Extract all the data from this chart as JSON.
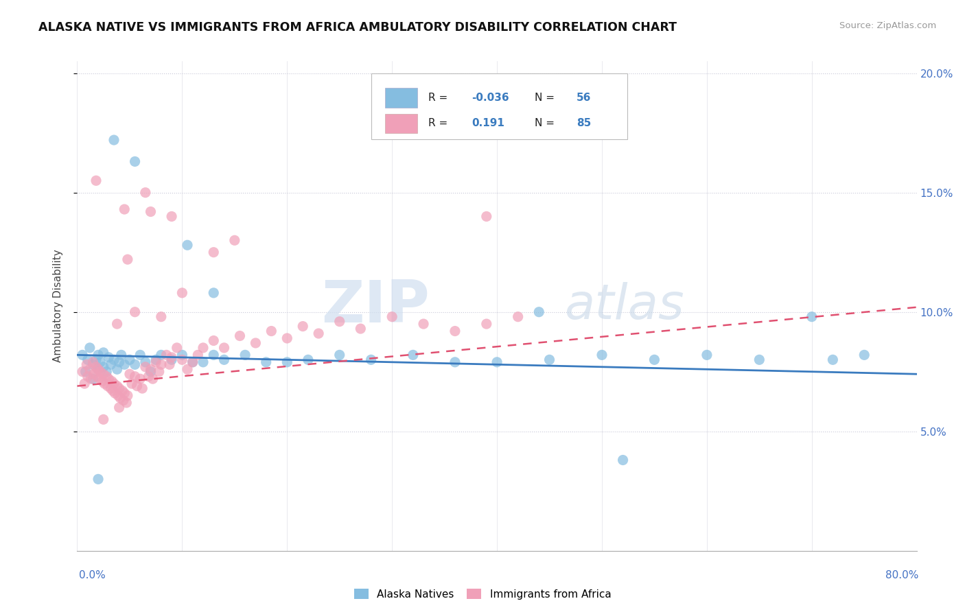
{
  "title": "ALASKA NATIVE VS IMMIGRANTS FROM AFRICA AMBULATORY DISABILITY CORRELATION CHART",
  "source": "Source: ZipAtlas.com",
  "ylabel": "Ambulatory Disability",
  "xmin": 0.0,
  "xmax": 0.8,
  "ymin": 0.0,
  "ymax": 0.205,
  "yticks": [
    0.05,
    0.1,
    0.15,
    0.2
  ],
  "ytick_labels": [
    "5.0%",
    "10.0%",
    "15.0%",
    "20.0%"
  ],
  "color_blue": "#85bde0",
  "color_pink": "#f0a0b8",
  "trendline_blue_start": 0.082,
  "trendline_blue_end": 0.074,
  "trendline_pink_start": 0.069,
  "trendline_pink_end": 0.102,
  "alaska_x": [
    0.005,
    0.008,
    0.01,
    0.012,
    0.015,
    0.015,
    0.018,
    0.02,
    0.02,
    0.022,
    0.025,
    0.025,
    0.028,
    0.03,
    0.032,
    0.035,
    0.038,
    0.04,
    0.042,
    0.045,
    0.05,
    0.055,
    0.06,
    0.065,
    0.07,
    0.075,
    0.08,
    0.09,
    0.1,
    0.11,
    0.12,
    0.13,
    0.14,
    0.16,
    0.18,
    0.2,
    0.22,
    0.25,
    0.28,
    0.32,
    0.36,
    0.4,
    0.45,
    0.5,
    0.55,
    0.6,
    0.65,
    0.7,
    0.72,
    0.75,
    0.035,
    0.055,
    0.105,
    0.13,
    0.44,
    0.52,
    0.02
  ],
  "alaska_y": [
    0.082,
    0.075,
    0.08,
    0.085,
    0.078,
    0.072,
    0.08,
    0.076,
    0.082,
    0.079,
    0.077,
    0.083,
    0.075,
    0.081,
    0.078,
    0.08,
    0.076,
    0.079,
    0.082,
    0.078,
    0.08,
    0.078,
    0.082,
    0.079,
    0.075,
    0.08,
    0.082,
    0.08,
    0.082,
    0.079,
    0.079,
    0.082,
    0.08,
    0.082,
    0.079,
    0.079,
    0.08,
    0.082,
    0.08,
    0.082,
    0.079,
    0.079,
    0.08,
    0.082,
    0.08,
    0.082,
    0.08,
    0.098,
    0.08,
    0.082,
    0.172,
    0.163,
    0.128,
    0.108,
    0.1,
    0.038,
    0.03
  ],
  "africa_x": [
    0.005,
    0.007,
    0.009,
    0.01,
    0.012,
    0.013,
    0.015,
    0.016,
    0.018,
    0.019,
    0.02,
    0.021,
    0.022,
    0.024,
    0.025,
    0.026,
    0.028,
    0.029,
    0.03,
    0.032,
    0.033,
    0.034,
    0.035,
    0.036,
    0.038,
    0.039,
    0.04,
    0.041,
    0.043,
    0.044,
    0.045,
    0.047,
    0.048,
    0.05,
    0.052,
    0.055,
    0.057,
    0.06,
    0.062,
    0.065,
    0.068,
    0.07,
    0.072,
    0.075,
    0.078,
    0.08,
    0.085,
    0.088,
    0.09,
    0.095,
    0.1,
    0.105,
    0.11,
    0.115,
    0.12,
    0.13,
    0.14,
    0.155,
    0.17,
    0.185,
    0.2,
    0.215,
    0.23,
    0.25,
    0.27,
    0.3,
    0.33,
    0.36,
    0.39,
    0.42,
    0.048,
    0.07,
    0.1,
    0.15,
    0.038,
    0.065,
    0.09,
    0.13,
    0.018,
    0.055,
    0.08,
    0.045,
    0.39,
    0.04,
    0.025
  ],
  "africa_y": [
    0.075,
    0.07,
    0.078,
    0.073,
    0.076,
    0.072,
    0.079,
    0.074,
    0.077,
    0.073,
    0.076,
    0.072,
    0.075,
    0.071,
    0.074,
    0.07,
    0.073,
    0.069,
    0.072,
    0.068,
    0.071,
    0.067,
    0.07,
    0.066,
    0.069,
    0.065,
    0.068,
    0.064,
    0.067,
    0.063,
    0.066,
    0.062,
    0.065,
    0.074,
    0.07,
    0.073,
    0.069,
    0.072,
    0.068,
    0.077,
    0.073,
    0.076,
    0.072,
    0.079,
    0.075,
    0.078,
    0.082,
    0.078,
    0.081,
    0.085,
    0.08,
    0.076,
    0.079,
    0.082,
    0.085,
    0.088,
    0.085,
    0.09,
    0.087,
    0.092,
    0.089,
    0.094,
    0.091,
    0.096,
    0.093,
    0.098,
    0.095,
    0.092,
    0.095,
    0.098,
    0.122,
    0.142,
    0.108,
    0.13,
    0.095,
    0.15,
    0.14,
    0.125,
    0.155,
    0.1,
    0.098,
    0.143,
    0.14,
    0.06,
    0.055
  ]
}
